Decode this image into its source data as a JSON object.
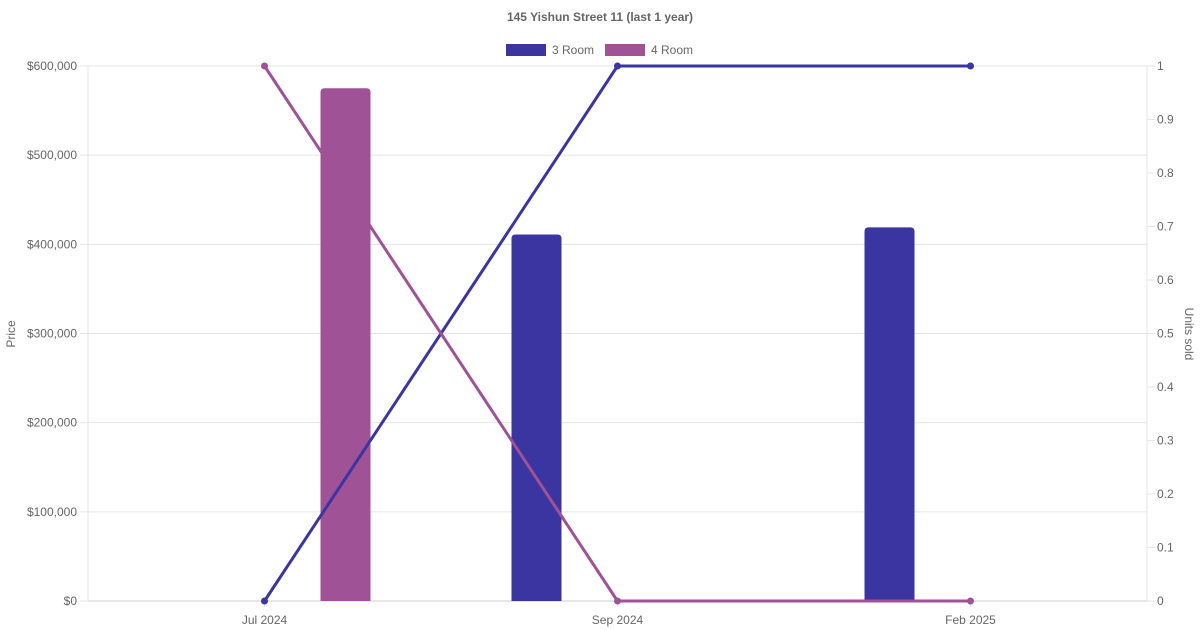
{
  "chart_data": {
    "type": "bar",
    "title": "145 Yishun Street 11 (last 1 year)",
    "categories": [
      "Jul 2024",
      "Sep 2024",
      "Feb 2025"
    ],
    "left_axis": {
      "label": "Price",
      "min": 0,
      "max": 600000,
      "ticks": [
        "$0",
        "$100,000",
        "$200,000",
        "$300,000",
        "$400,000",
        "$500,000",
        "$600,000"
      ]
    },
    "right_axis": {
      "label": "Units sold",
      "min": 0,
      "max": 1,
      "ticks": [
        "0",
        "0.1",
        "0.2",
        "0.3",
        "0.4",
        "0.5",
        "0.6",
        "0.7",
        "0.8",
        "0.9",
        "1"
      ]
    },
    "series": [
      {
        "name": "3 Room",
        "color": "#3a35a0",
        "price": [
          null,
          411000,
          419000
        ],
        "units_sold": [
          0,
          1,
          1
        ]
      },
      {
        "name": "4 Room",
        "color": "#a05296",
        "price": [
          575000,
          null,
          null
        ],
        "units_sold": [
          1,
          0,
          0
        ]
      }
    ],
    "grid": true,
    "legend": "top-center"
  }
}
